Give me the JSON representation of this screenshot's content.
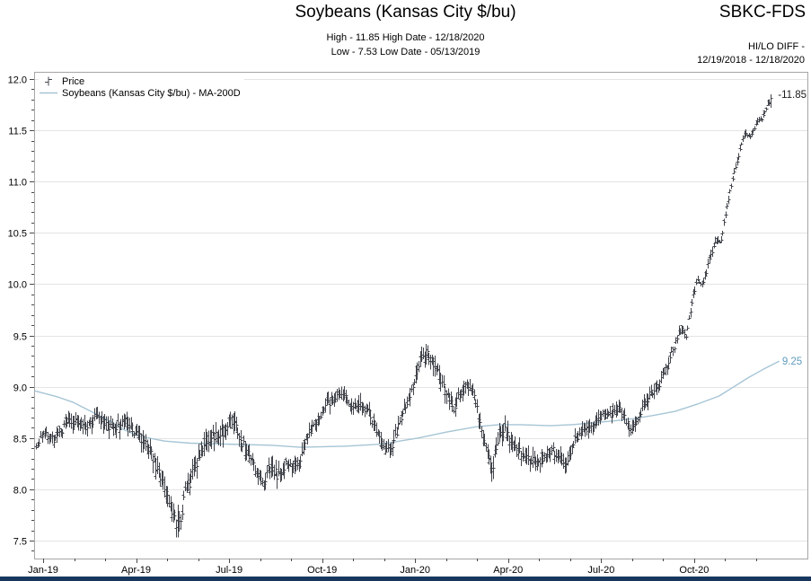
{
  "header": {
    "title": "Soybeans (Kansas City $/bu)",
    "ticker": "SBKC-FDS",
    "high_line": "High - 11.85 High Date - 12/18/2020",
    "low_line": "Low - 7.53 Low Date - 05/13/2019",
    "hilo_label": "HI/LO DIFF -",
    "date_range": "12/19/2018 - 12/18/2020"
  },
  "legend": {
    "price_label": "Price",
    "ma_label": "Soybeans (Kansas City $/bu) - MA-200D"
  },
  "chart_data": {
    "type": "ohlc",
    "title": "Soybeans (Kansas City $/bu)",
    "xlabel": "",
    "ylabel": "",
    "x_range": [
      "12/19/2018",
      "12/18/2020"
    ],
    "series": [
      {
        "name": "Price",
        "type": "hlc_bars"
      },
      {
        "name": "Soybeans (Kansas City $/bu) - MA-200D",
        "type": "line"
      }
    ],
    "high": {
      "value": 11.85,
      "date": "12/18/2020"
    },
    "low": {
      "value": 7.53,
      "date": "05/13/2019"
    },
    "ma_last_value": 9.25,
    "annotations": {
      "high_label": "-11.85",
      "ma_label": "9.25"
    },
    "y_axis": {
      "min": 7.5,
      "max": 12.0,
      "major_step": 0.5,
      "minor_step": 0.1,
      "top_value": 12.07,
      "bottom_value": 7.325,
      "grid": true,
      "tick_labels": [
        "7.5",
        "8.0",
        "8.5",
        "9.0",
        "9.5",
        "10.0",
        "10.5",
        "11.0",
        "11.5",
        "12.0"
      ]
    },
    "x_axis": {
      "tick_labels": [
        "Jan-19",
        "Apr-19",
        "Jul-19",
        "Oct-19",
        "Jan-20",
        "Apr-20",
        "Jul-20",
        "Oct-20"
      ],
      "major_tick_months": [
        0,
        3,
        6,
        9,
        12,
        15,
        18,
        21
      ],
      "minor_tick_months_from": 0,
      "minor_tick_months_to": 23
    },
    "price_keyframes": [
      [
        0.0,
        8.42
      ],
      [
        0.01,
        8.55
      ],
      [
        0.024,
        8.48
      ],
      [
        0.043,
        8.66
      ],
      [
        0.067,
        8.62
      ],
      [
        0.086,
        8.7
      ],
      [
        0.104,
        8.6
      ],
      [
        0.122,
        8.66
      ],
      [
        0.134,
        8.56
      ],
      [
        0.147,
        8.48
      ],
      [
        0.159,
        8.3
      ],
      [
        0.171,
        8.1
      ],
      [
        0.183,
        7.85
      ],
      [
        0.193,
        7.58
      ],
      [
        0.202,
        7.95
      ],
      [
        0.21,
        8.1
      ],
      [
        0.22,
        8.3
      ],
      [
        0.238,
        8.52
      ],
      [
        0.257,
        8.58
      ],
      [
        0.267,
        8.68
      ],
      [
        0.281,
        8.45
      ],
      [
        0.296,
        8.25
      ],
      [
        0.308,
        8.06
      ],
      [
        0.318,
        8.2
      ],
      [
        0.33,
        8.14
      ],
      [
        0.342,
        8.28
      ],
      [
        0.355,
        8.2
      ],
      [
        0.367,
        8.45
      ],
      [
        0.385,
        8.72
      ],
      [
        0.403,
        8.88
      ],
      [
        0.416,
        8.93
      ],
      [
        0.434,
        8.78
      ],
      [
        0.446,
        8.84
      ],
      [
        0.462,
        8.6
      ],
      [
        0.474,
        8.4
      ],
      [
        0.483,
        8.38
      ],
      [
        0.495,
        8.65
      ],
      [
        0.507,
        8.88
      ],
      [
        0.52,
        9.18
      ],
      [
        0.528,
        9.33
      ],
      [
        0.538,
        9.28
      ],
      [
        0.548,
        9.12
      ],
      [
        0.556,
        8.95
      ],
      [
        0.569,
        8.78
      ],
      [
        0.577,
        8.94
      ],
      [
        0.587,
        9.0
      ],
      [
        0.597,
        8.93
      ],
      [
        0.605,
        8.6
      ],
      [
        0.615,
        8.3
      ],
      [
        0.621,
        8.2
      ],
      [
        0.63,
        8.52
      ],
      [
        0.638,
        8.58
      ],
      [
        0.648,
        8.45
      ],
      [
        0.66,
        8.35
      ],
      [
        0.672,
        8.3
      ],
      [
        0.685,
        8.24
      ],
      [
        0.694,
        8.35
      ],
      [
        0.703,
        8.4
      ],
      [
        0.711,
        8.3
      ],
      [
        0.721,
        8.26
      ],
      [
        0.731,
        8.45
      ],
      [
        0.743,
        8.55
      ],
      [
        0.755,
        8.6
      ],
      [
        0.768,
        8.7
      ],
      [
        0.78,
        8.74
      ],
      [
        0.792,
        8.8
      ],
      [
        0.801,
        8.7
      ],
      [
        0.809,
        8.56
      ],
      [
        0.819,
        8.7
      ],
      [
        0.829,
        8.85
      ],
      [
        0.839,
        8.95
      ],
      [
        0.85,
        9.05
      ],
      [
        0.861,
        9.25
      ],
      [
        0.87,
        9.42
      ],
      [
        0.878,
        9.58
      ],
      [
        0.885,
        9.5
      ],
      [
        0.893,
        9.85
      ],
      [
        0.9,
        10.05
      ],
      [
        0.907,
        9.98
      ],
      [
        0.917,
        10.25
      ],
      [
        0.927,
        10.45
      ],
      [
        0.932,
        10.42
      ],
      [
        0.941,
        10.8
      ],
      [
        0.95,
        11.1
      ],
      [
        0.957,
        11.28
      ],
      [
        0.964,
        11.48
      ],
      [
        0.972,
        11.42
      ],
      [
        0.979,
        11.55
      ],
      [
        0.988,
        11.62
      ],
      [
        1.0,
        11.82
      ]
    ],
    "volatility_keyframes": [
      [
        0.0,
        0.1
      ],
      [
        0.03,
        0.16
      ],
      [
        0.08,
        0.18
      ],
      [
        0.13,
        0.18
      ],
      [
        0.19,
        0.22
      ],
      [
        0.25,
        0.2
      ],
      [
        0.33,
        0.18
      ],
      [
        0.4,
        0.16
      ],
      [
        0.48,
        0.16
      ],
      [
        0.53,
        0.18
      ],
      [
        0.6,
        0.16
      ],
      [
        0.63,
        0.2
      ],
      [
        0.7,
        0.16
      ],
      [
        0.78,
        0.14
      ],
      [
        0.84,
        0.16
      ],
      [
        0.87,
        0.12
      ],
      [
        0.9,
        0.1
      ],
      [
        0.94,
        0.08
      ],
      [
        0.97,
        0.07
      ],
      [
        1.0,
        0.06
      ]
    ],
    "ma200_keyframes": [
      [
        -0.002,
        8.96
      ],
      [
        0.03,
        8.9
      ],
      [
        0.05,
        8.85
      ],
      [
        0.075,
        8.76
      ],
      [
        0.1,
        8.67
      ],
      [
        0.12,
        8.58
      ],
      [
        0.14,
        8.52
      ],
      [
        0.175,
        8.47
      ],
      [
        0.21,
        8.45
      ],
      [
        0.26,
        8.44
      ],
      [
        0.32,
        8.43
      ],
      [
        0.36,
        8.41
      ],
      [
        0.42,
        8.42
      ],
      [
        0.47,
        8.44
      ],
      [
        0.52,
        8.5
      ],
      [
        0.56,
        8.56
      ],
      [
        0.6,
        8.61
      ],
      [
        0.63,
        8.63
      ],
      [
        0.66,
        8.63
      ],
      [
        0.7,
        8.62
      ],
      [
        0.73,
        8.63
      ],
      [
        0.76,
        8.65
      ],
      [
        0.79,
        8.67
      ],
      [
        0.815,
        8.69
      ],
      [
        0.84,
        8.72
      ],
      [
        0.87,
        8.76
      ],
      [
        0.9,
        8.83
      ],
      [
        0.93,
        8.91
      ],
      [
        0.95,
        9.0
      ],
      [
        0.97,
        9.09
      ],
      [
        0.99,
        9.17
      ],
      [
        1.012,
        9.25
      ]
    ],
    "colors": {
      "bar": "#41444b",
      "ma_line": "#a6c5d5",
      "ma_label": "#5f9cbf",
      "high_label": "#1a1a1a",
      "grid": "#e4e4e4",
      "axis": "#a6a6a6",
      "tick": "#4a4a4a",
      "text": "#000000",
      "footer_bar": "#17375e"
    }
  }
}
